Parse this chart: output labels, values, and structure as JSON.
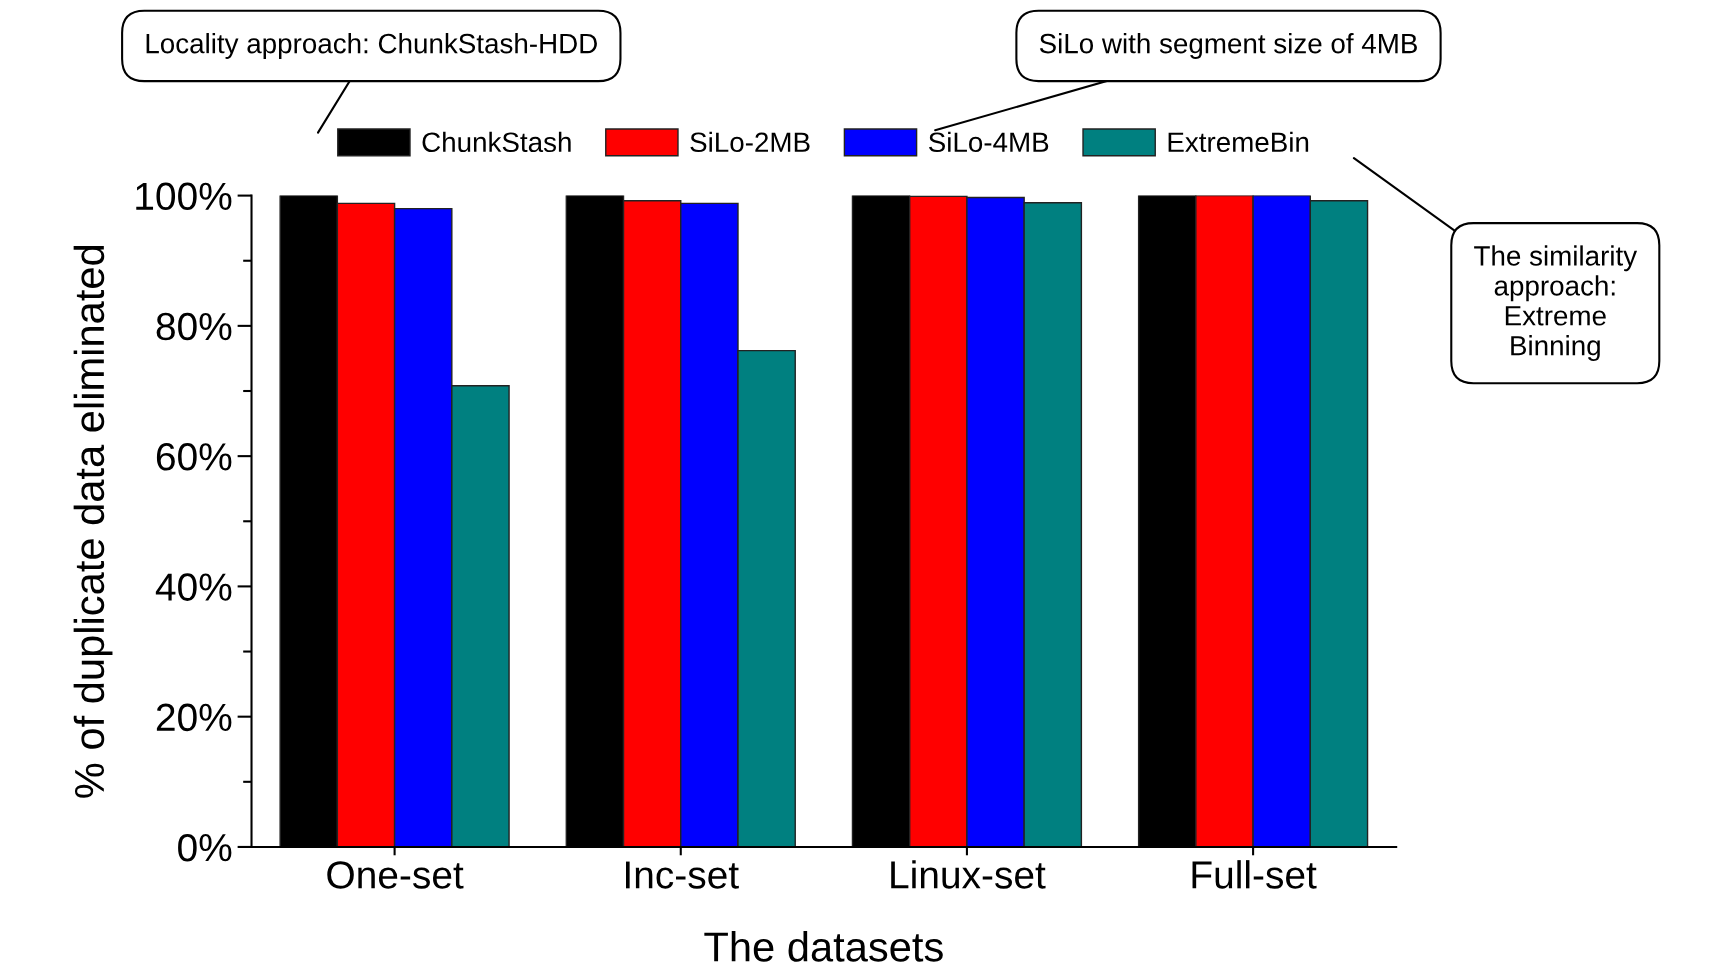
{
  "chart_data": {
    "type": "bar",
    "xlabel": "The datasets",
    "ylabel": "% of duplicate data eliminated",
    "categories": [
      "One-set",
      "Inc-set",
      "Linux-set",
      "Full-set"
    ],
    "series": [
      {
        "name": "ChunkStash",
        "color": "#000000",
        "values": [
          100,
          100,
          100,
          100
        ]
      },
      {
        "name": "SiLo-2MB",
        "color": "#ff0000",
        "values": [
          98.8,
          99.2,
          99.9,
          100
        ]
      },
      {
        "name": "SiLo-4MB",
        "color": "#0000ff",
        "values": [
          98.0,
          98.8,
          99.7,
          100
        ]
      },
      {
        "name": "ExtremeBin",
        "color": "#008080",
        "values": [
          70.8,
          76.2,
          98.9,
          99.2
        ]
      }
    ],
    "ylim": [
      0,
      100
    ],
    "yticks": [
      {
        "value": 0,
        "label": "0%"
      },
      {
        "value": 20,
        "label": "20%"
      },
      {
        "value": 40,
        "label": "40%"
      },
      {
        "value": 60,
        "label": "60%"
      },
      {
        "value": 80,
        "label": "80%"
      },
      {
        "value": 100,
        "label": "100%"
      }
    ],
    "grid": false,
    "legend": "top",
    "annotations": [
      "Locality approach: ChunkStash-HDD",
      "SiLo with segment size of 4MB",
      "The similarity\napproach:\nExtreme\nBinning"
    ]
  }
}
